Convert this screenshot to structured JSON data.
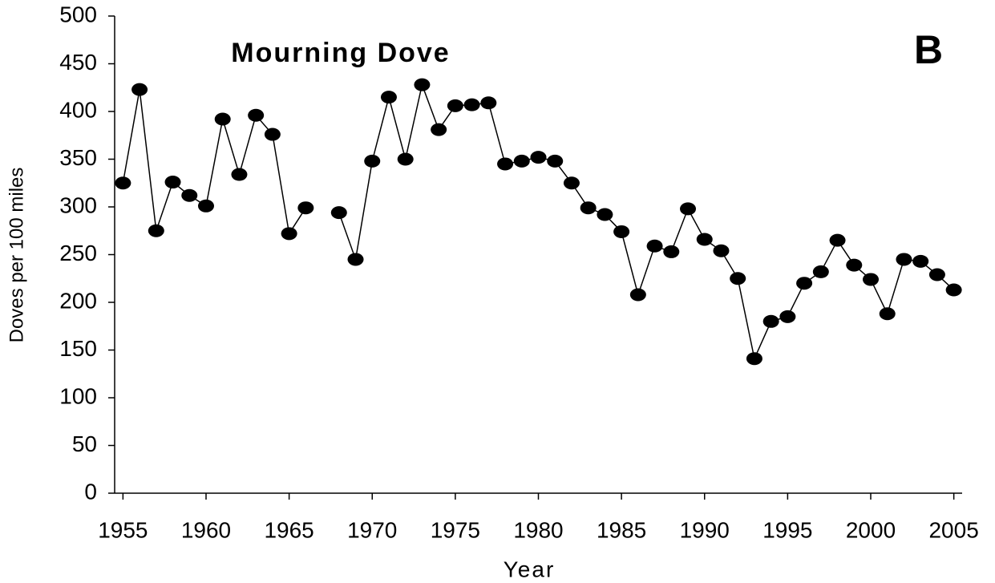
{
  "chart_data": {
    "type": "line",
    "title": "Mourning Dove",
    "annotation": "B",
    "x_label": "Year",
    "y_label": "Doves per 100 miles",
    "x": [
      1955,
      1956,
      1957,
      1958,
      1959,
      1960,
      1961,
      1962,
      1963,
      1964,
      1965,
      1966,
      1967,
      1968,
      1969,
      1970,
      1971,
      1972,
      1973,
      1974,
      1975,
      1976,
      1977,
      1978,
      1979,
      1980,
      1981,
      1982,
      1983,
      1984,
      1985,
      1986,
      1987,
      1988,
      1989,
      1990,
      1991,
      1992,
      1993,
      1994,
      1995,
      1996,
      1997,
      1998,
      1999,
      2000,
      2001,
      2002,
      2003,
      2004,
      2005
    ],
    "series": [
      {
        "name": "Mourning Dove",
        "color": "#000000",
        "values": [
          325,
          423,
          275,
          326,
          312,
          301,
          392,
          334,
          396,
          376,
          272,
          299,
          null,
          294,
          245,
          348,
          415,
          350,
          428,
          381,
          406,
          407,
          409,
          345,
          348,
          352,
          348,
          325,
          299,
          292,
          274,
          208,
          259,
          253,
          298,
          266,
          254,
          225,
          141,
          180,
          185,
          220,
          232,
          265,
          239,
          224,
          188,
          245,
          243,
          229,
          213
        ]
      }
    ],
    "xlim": [
      1954.5,
      2005.5
    ],
    "xticks": [
      1955,
      1960,
      1965,
      1970,
      1975,
      1980,
      1985,
      1990,
      1995,
      2000,
      2005
    ],
    "ylim": [
      0,
      500
    ],
    "yticks": [
      0,
      50,
      100,
      150,
      200,
      250,
      300,
      350,
      400,
      450,
      500
    ],
    "grid": false
  }
}
